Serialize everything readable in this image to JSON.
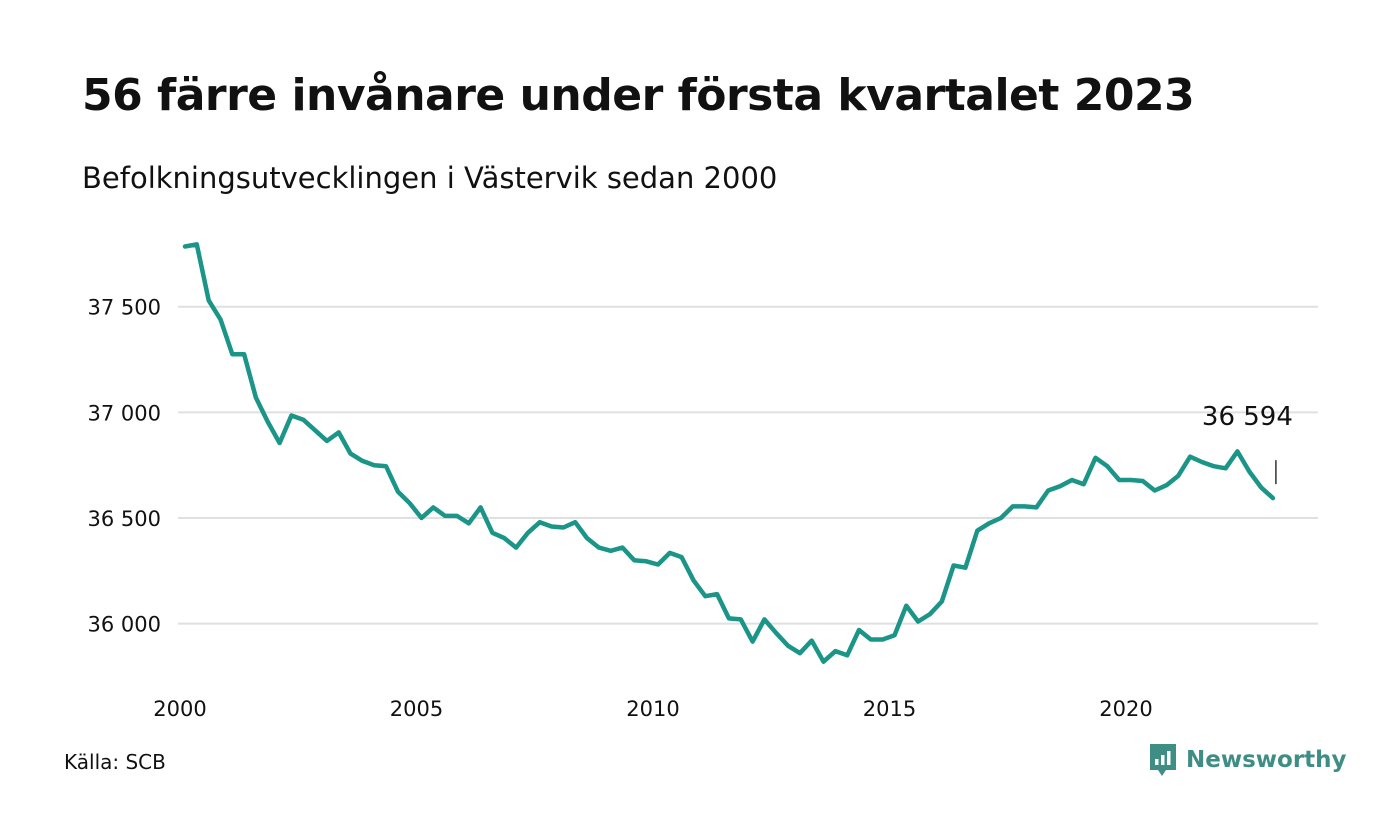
{
  "title": "56 färre invånare under första kvartalet 2023",
  "subtitle": "Befolkningsutvecklingen i Västervik sedan 2000",
  "source": "Källa: SCB",
  "brand": {
    "name": "Newsworthy",
    "icon": "newsworthy-logo-icon",
    "color": "#3e8e85"
  },
  "colors": {
    "line": "#1a9588",
    "grid": "#e0e0e0",
    "text": "#111111"
  },
  "chart_data": {
    "type": "line",
    "title": "56 färre invånare under första kvartalet 2023",
    "subtitle": "Befolkningsutvecklingen i Västervik sedan 2000",
    "xlim": [
      2000.0,
      2023.75
    ],
    "ylim": [
      35750,
      37820
    ],
    "x_ticks": [
      2000,
      2005,
      2010,
      2015,
      2020
    ],
    "x_tick_labels": [
      "2000",
      "2005",
      "2010",
      "2015",
      "2020"
    ],
    "y_ticks": [
      36000,
      36500,
      37000,
      37500
    ],
    "y_tick_labels": [
      "36 000",
      "36 500",
      "37 000",
      "37 500"
    ],
    "grid": "horizontal",
    "annotation": {
      "text": "36 594",
      "x": 2023.0,
      "y": 36594
    },
    "series": [
      {
        "values": [
          {
            "x": 2000.0,
            "y": 37785
          },
          {
            "x": 2000.25,
            "y": 37795
          },
          {
            "x": 2000.5,
            "y": 37530
          },
          {
            "x": 2000.75,
            "y": 37440
          },
          {
            "x": 2001.0,
            "y": 37275
          },
          {
            "x": 2001.25,
            "y": 37275
          },
          {
            "x": 2001.5,
            "y": 37070
          },
          {
            "x": 2001.75,
            "y": 36955
          },
          {
            "x": 2002.0,
            "y": 36855
          },
          {
            "x": 2002.25,
            "y": 36985
          },
          {
            "x": 2002.5,
            "y": 36965
          },
          {
            "x": 2002.75,
            "y": 36915
          },
          {
            "x": 2003.0,
            "y": 36865
          },
          {
            "x": 2003.25,
            "y": 36905
          },
          {
            "x": 2003.5,
            "y": 36805
          },
          {
            "x": 2003.75,
            "y": 36770
          },
          {
            "x": 2004.0,
            "y": 36750
          },
          {
            "x": 2004.25,
            "y": 36745
          },
          {
            "x": 2004.5,
            "y": 36625
          },
          {
            "x": 2004.75,
            "y": 36570
          },
          {
            "x": 2005.0,
            "y": 36500
          },
          {
            "x": 2005.25,
            "y": 36550
          },
          {
            "x": 2005.5,
            "y": 36510
          },
          {
            "x": 2005.75,
            "y": 36510
          },
          {
            "x": 2006.0,
            "y": 36475
          },
          {
            "x": 2006.25,
            "y": 36550
          },
          {
            "x": 2006.5,
            "y": 36430
          },
          {
            "x": 2006.75,
            "y": 36405
          },
          {
            "x": 2007.0,
            "y": 36360
          },
          {
            "x": 2007.25,
            "y": 36430
          },
          {
            "x": 2007.5,
            "y": 36480
          },
          {
            "x": 2007.75,
            "y": 36460
          },
          {
            "x": 2008.0,
            "y": 36455
          },
          {
            "x": 2008.25,
            "y": 36480
          },
          {
            "x": 2008.5,
            "y": 36405
          },
          {
            "x": 2008.75,
            "y": 36360
          },
          {
            "x": 2009.0,
            "y": 36345
          },
          {
            "x": 2009.25,
            "y": 36360
          },
          {
            "x": 2009.5,
            "y": 36300
          },
          {
            "x": 2009.75,
            "y": 36295
          },
          {
            "x": 2010.0,
            "y": 36280
          },
          {
            "x": 2010.25,
            "y": 36335
          },
          {
            "x": 2010.5,
            "y": 36315
          },
          {
            "x": 2010.75,
            "y": 36205
          },
          {
            "x": 2011.0,
            "y": 36130
          },
          {
            "x": 2011.25,
            "y": 36140
          },
          {
            "x": 2011.5,
            "y": 36025
          },
          {
            "x": 2011.75,
            "y": 36020
          },
          {
            "x": 2012.0,
            "y": 35915
          },
          {
            "x": 2012.25,
            "y": 36020
          },
          {
            "x": 2012.5,
            "y": 35955
          },
          {
            "x": 2012.75,
            "y": 35895
          },
          {
            "x": 2013.0,
            "y": 35860
          },
          {
            "x": 2013.25,
            "y": 35920
          },
          {
            "x": 2013.5,
            "y": 35820
          },
          {
            "x": 2013.75,
            "y": 35870
          },
          {
            "x": 2014.0,
            "y": 35850
          },
          {
            "x": 2014.25,
            "y": 35970
          },
          {
            "x": 2014.5,
            "y": 35925
          },
          {
            "x": 2014.75,
            "y": 35925
          },
          {
            "x": 2015.0,
            "y": 35945
          },
          {
            "x": 2015.25,
            "y": 36085
          },
          {
            "x": 2015.5,
            "y": 36010
          },
          {
            "x": 2015.75,
            "y": 36045
          },
          {
            "x": 2016.0,
            "y": 36105
          },
          {
            "x": 2016.25,
            "y": 36275
          },
          {
            "x": 2016.5,
            "y": 36265
          },
          {
            "x": 2016.75,
            "y": 36440
          },
          {
            "x": 2017.0,
            "y": 36475
          },
          {
            "x": 2017.25,
            "y": 36500
          },
          {
            "x": 2017.5,
            "y": 36555
          },
          {
            "x": 2017.75,
            "y": 36555
          },
          {
            "x": 2018.0,
            "y": 36550
          },
          {
            "x": 2018.25,
            "y": 36630
          },
          {
            "x": 2018.5,
            "y": 36650
          },
          {
            "x": 2018.75,
            "y": 36680
          },
          {
            "x": 2019.0,
            "y": 36660
          },
          {
            "x": 2019.25,
            "y": 36785
          },
          {
            "x": 2019.5,
            "y": 36745
          },
          {
            "x": 2019.75,
            "y": 36680
          },
          {
            "x": 2020.0,
            "y": 36680
          },
          {
            "x": 2020.25,
            "y": 36675
          },
          {
            "x": 2020.5,
            "y": 36630
          },
          {
            "x": 2020.75,
            "y": 36655
          },
          {
            "x": 2021.0,
            "y": 36700
          },
          {
            "x": 2021.25,
            "y": 36790
          },
          {
            "x": 2021.5,
            "y": 36765
          },
          {
            "x": 2021.75,
            "y": 36745
          },
          {
            "x": 2022.0,
            "y": 36735
          },
          {
            "x": 2022.25,
            "y": 36815
          },
          {
            "x": 2022.5,
            "y": 36720
          },
          {
            "x": 2022.75,
            "y": 36645
          },
          {
            "x": 2023.0,
            "y": 36594
          }
        ]
      }
    ]
  }
}
